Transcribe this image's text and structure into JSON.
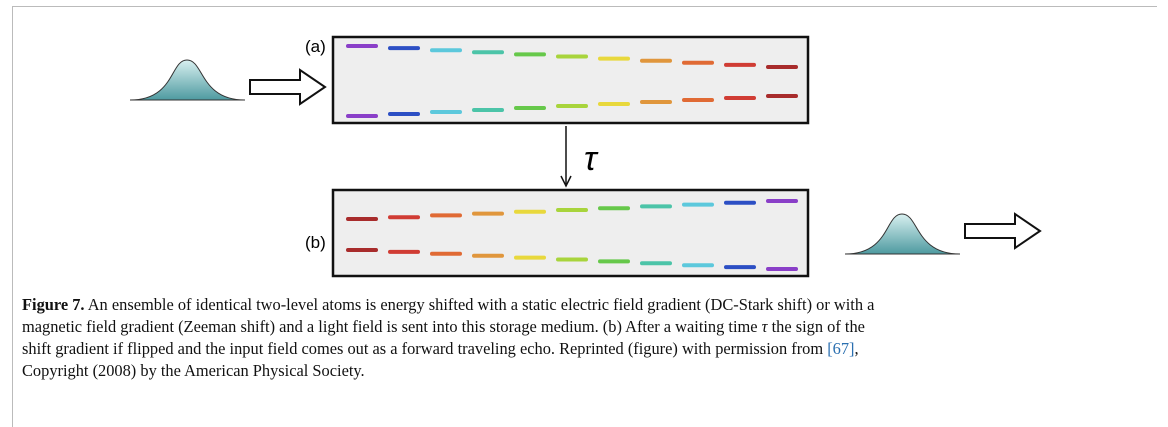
{
  "figure": {
    "panel_a": "(a)",
    "panel_b": "(b)",
    "delay_symbol": "τ"
  },
  "caption": {
    "label": "Figure 7.",
    "segments": [
      " An ensemble of identical two-level atoms is energy shifted with a static electric field gradient (DC-Stark shift) or with a",
      "magnetic field gradient (Zeeman shift) and a light field is sent into this storage medium. (b) After a waiting time ",
      "τ",
      " the sign of the",
      "shift gradient if flipped and the input field comes out as a forward traveling echo. Reprinted (figure) with permission from ",
      "[67]",
      ",",
      "Copyright (2008) by the American Physical Society."
    ]
  }
}
